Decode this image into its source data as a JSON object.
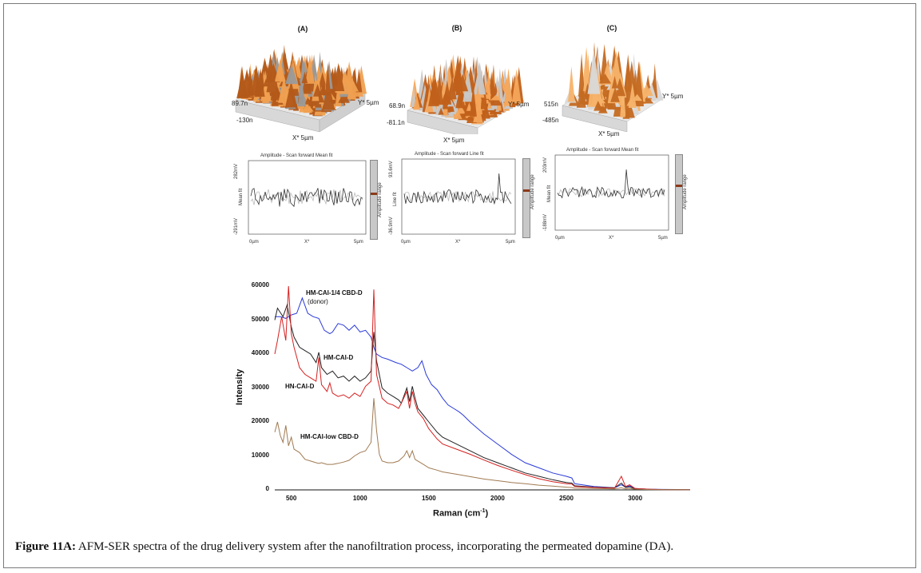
{
  "figure": {
    "caption_label": "Figure 11A:",
    "caption_text": " AFM-SER spectra of the drug delivery system after the nanofiltration process, incorporating the permeated dopamine (DA)."
  },
  "afm_panels": [
    {
      "title": "(A)",
      "z_top": "89.7n",
      "z_bottom": "-130n",
      "x_axis": "X* 5µm",
      "y_axis": "Y* 5µm",
      "profile_header": "Amplitude - Scan forward   Mean fit",
      "profile_y_top": "282mV",
      "profile_y_mid": "Mean fit",
      "profile_y_bottom": "-291mV",
      "profile_x_left": "0µm",
      "profile_x_mid": "X*",
      "profile_x_right": "5µm",
      "range_label": "Amplitude range",
      "colors": {
        "peak": "#f0a050",
        "base": "#b35a1a",
        "shade": "#9a9a9a"
      }
    },
    {
      "title": "(B)",
      "z_top": "68.9n",
      "z_bottom": "-81.1n",
      "x_axis": "X* 5µm",
      "y_axis": "Y* 5µm",
      "profile_header": "Amplitude - Scan forward   Line fit",
      "profile_y_top": "93.6mV",
      "profile_y_mid": "Line fit",
      "profile_y_bottom": "-36.9mV",
      "profile_x_left": "0µm",
      "profile_x_mid": "X*",
      "profile_x_right": "5µm",
      "range_label": "Amplitude range",
      "colors": {
        "peak": "#f5a65b",
        "base": "#c0601a",
        "shade": "#c8c8c8"
      }
    },
    {
      "title": "(C)",
      "z_top": "515n",
      "z_bottom": "-485n",
      "x_axis": "X* 5µm",
      "y_axis": "Y* 5µm",
      "profile_header": "Amplitude - Scan forward   Mean fit",
      "profile_y_top": "203mV",
      "profile_y_mid": "Mean fit",
      "profile_y_bottom": "-188mV",
      "profile_x_left": "0µm",
      "profile_x_mid": "X*",
      "profile_x_right": "5µm",
      "range_label": "Amplitude range",
      "colors": {
        "peak": "#f7b36a",
        "base": "#c46a22",
        "shade": "#d9d9d9"
      }
    }
  ],
  "chart_data": {
    "type": "line",
    "title": "",
    "xlabel": "Raman (cm",
    "xlabel_sup": "-1",
    "xlabel_end": ")",
    "ylabel": "Intensity",
    "xlim": [
      380,
      3400
    ],
    "ylim": [
      0,
      60000
    ],
    "yticks": [
      "60000",
      "50000",
      "40000",
      "30000",
      "20000",
      "10000",
      "0"
    ],
    "ytick_values": [
      60000,
      50000,
      40000,
      30000,
      20000,
      10000,
      0
    ],
    "xticks": [
      "500",
      "1000",
      "1500",
      "2000",
      "2500",
      "3000"
    ],
    "xtick_values": [
      500,
      1000,
      1500,
      2000,
      2500,
      3000
    ],
    "series": [
      {
        "name": "HM-CAI-1/4 CBD-D",
        "color": "#2b3bd9",
        "x": [
          380,
          420,
          460,
          500,
          540,
          580,
          620,
          660,
          700,
          740,
          780,
          800,
          840,
          880,
          920,
          960,
          1000,
          1040,
          1080,
          1100,
          1120,
          1160,
          1200,
          1260,
          1300,
          1340,
          1380,
          1420,
          1450,
          1480,
          1520,
          1560,
          1600,
          1640,
          1680,
          1720,
          1750,
          1800,
          1900,
          2000,
          2100,
          2200,
          2300,
          2400,
          2500,
          2540,
          2560,
          2700,
          2850,
          2900,
          2930,
          2960,
          3000,
          3100,
          3200,
          3400
        ],
        "y": [
          51000,
          51000,
          50500,
          51500,
          52000,
          56500,
          52000,
          51000,
          50500,
          47000,
          46000,
          46500,
          49000,
          48500,
          47000,
          48500,
          46500,
          47000,
          45000,
          42000,
          40000,
          39000,
          38500,
          37500,
          37000,
          36000,
          35000,
          36000,
          38000,
          34000,
          31000,
          29500,
          27000,
          25000,
          24000,
          23000,
          22000,
          20000,
          16500,
          13500,
          10500,
          8000,
          6500,
          5000,
          4000,
          3500,
          1800,
          1000,
          600,
          1500,
          800,
          1200,
          400,
          200,
          150,
          100
        ]
      },
      {
        "name": "HM-CAI-D",
        "color": "#222222",
        "x": [
          380,
          400,
          440,
          470,
          500,
          520,
          560,
          600,
          640,
          680,
          700,
          720,
          760,
          800,
          840,
          880,
          920,
          960,
          1000,
          1040,
          1080,
          1100,
          1120,
          1160,
          1200,
          1240,
          1280,
          1300,
          1340,
          1360,
          1380,
          1400,
          1420,
          1460,
          1500,
          1560,
          1600,
          1700,
          1800,
          1900,
          2000,
          2100,
          2200,
          2300,
          2400,
          2500,
          2540,
          2560,
          2700,
          2850,
          2900,
          2930,
          2960,
          3000,
          3100,
          3200,
          3400
        ],
        "y": [
          50000,
          53500,
          51000,
          54500,
          48000,
          45000,
          42000,
          41000,
          40000,
          37500,
          40500,
          36000,
          34000,
          35000,
          33000,
          33500,
          32000,
          33500,
          32000,
          33000,
          35000,
          46500,
          38000,
          30000,
          28500,
          27500,
          26500,
          25500,
          30000,
          26000,
          30500,
          27000,
          24000,
          22000,
          20000,
          17000,
          15500,
          13500,
          11500,
          9500,
          8000,
          6500,
          5000,
          4000,
          3000,
          2200,
          2000,
          1200,
          800,
          600,
          2000,
          700,
          900,
          300,
          150,
          100,
          80
        ]
      },
      {
        "name": "HN-CAI-D",
        "color": "#d62020",
        "x": [
          380,
          400,
          430,
          460,
          480,
          500,
          520,
          560,
          600,
          640,
          680,
          700,
          720,
          760,
          780,
          800,
          840,
          880,
          920,
          960,
          1000,
          1040,
          1080,
          1100,
          1120,
          1160,
          1200,
          1240,
          1280,
          1300,
          1340,
          1360,
          1380,
          1400,
          1420,
          1460,
          1500,
          1560,
          1600,
          1700,
          1800,
          1900,
          2000,
          2100,
          2200,
          2300,
          2400,
          2500,
          2540,
          2560,
          2700,
          2850,
          2900,
          2930,
          2960,
          3000,
          3100,
          3200,
          3400
        ],
        "y": [
          40000,
          44000,
          51000,
          44000,
          60000,
          46000,
          42000,
          36000,
          34000,
          33000,
          32000,
          39000,
          31000,
          29000,
          31500,
          28500,
          27500,
          28000,
          27000,
          28500,
          27500,
          30500,
          32000,
          59000,
          34000,
          27000,
          25500,
          25000,
          24000,
          25500,
          29000,
          24000,
          29000,
          25500,
          23000,
          21000,
          18000,
          15000,
          13500,
          12000,
          10500,
          8800,
          7200,
          5800,
          4500,
          3300,
          2400,
          1800,
          1700,
          1000,
          700,
          500,
          4000,
          1000,
          1500,
          400,
          200,
          100,
          80
        ]
      },
      {
        "name": "HM-CAI-low CBD-D",
        "color": "#a07a52",
        "x": [
          380,
          400,
          420,
          440,
          460,
          480,
          500,
          520,
          560,
          600,
          640,
          680,
          700,
          720,
          760,
          800,
          840,
          880,
          920,
          960,
          1000,
          1040,
          1080,
          1100,
          1120,
          1140,
          1160,
          1200,
          1240,
          1280,
          1320,
          1340,
          1360,
          1380,
          1400,
          1420,
          1460,
          1500,
          1560,
          1600,
          1700,
          1800,
          1900,
          2000,
          2100,
          2200,
          2300,
          2400,
          2500,
          2540,
          2560,
          2700,
          2850,
          2900,
          2930,
          2960,
          3000,
          3100,
          3200,
          3400
        ],
        "y": [
          17000,
          20000,
          16000,
          14000,
          19000,
          13000,
          15500,
          12000,
          11000,
          9000,
          8500,
          8000,
          7800,
          8000,
          7500,
          7500,
          7800,
          8200,
          8700,
          10000,
          11000,
          11500,
          14000,
          27000,
          17500,
          10500,
          8500,
          8000,
          8000,
          8500,
          10000,
          11500,
          9500,
          11500,
          9000,
          8500,
          7500,
          6500,
          5800,
          5300,
          4600,
          3900,
          3200,
          2700,
          2200,
          1800,
          1400,
          1100,
          800,
          700,
          500,
          400,
          300,
          600,
          300,
          400,
          200,
          100,
          80,
          60
        ]
      }
    ],
    "annotations": [
      {
        "text": "HM-CAI-1/4 CBD-D",
        "sub": "(donor)"
      },
      {
        "text": "HM-CAI-D"
      },
      {
        "text": "HN-CAI-D"
      },
      {
        "text": "HM-CAI-low CBD-D"
      }
    ]
  }
}
